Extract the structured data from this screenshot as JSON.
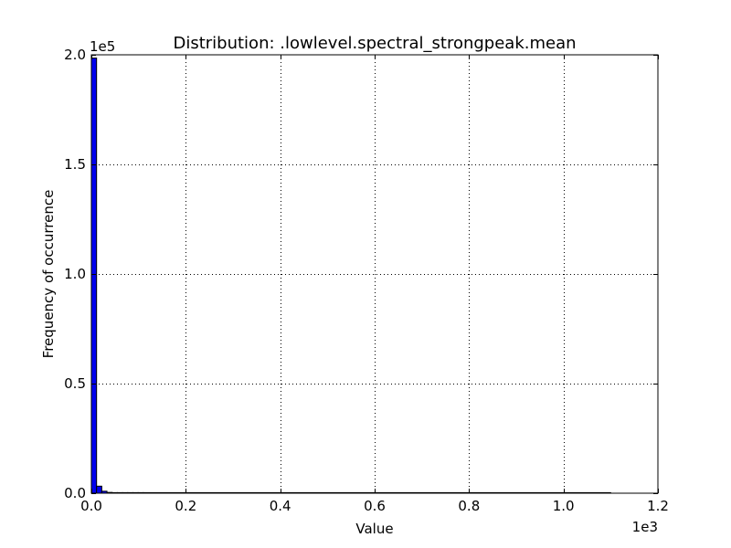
{
  "chart_data": {
    "type": "bar",
    "title": "Distribution: .lowlevel.spectral_strongpeak.mean",
    "xlabel": "Value",
    "ylabel": "Frequency of occurrence",
    "x_multiplier": "1e3",
    "y_multiplier": "1e5",
    "xlim": [
      0,
      1200
    ],
    "ylim": [
      0,
      200000
    ],
    "x_ticks": [
      0,
      200,
      400,
      600,
      800,
      1000,
      1200
    ],
    "x_tick_labels": [
      "0.0",
      "0.2",
      "0.4",
      "0.6",
      "0.8",
      "1.0",
      "1.2"
    ],
    "y_ticks": [
      0,
      50000,
      100000,
      150000,
      200000
    ],
    "y_tick_labels": [
      "0.0",
      "0.5",
      "1.0",
      "1.5",
      "2.0"
    ],
    "grid": true,
    "bar_color": "#0000ee",
    "bin_edges": [
      0,
      11,
      22,
      33,
      44,
      55,
      66,
      77,
      88,
      99,
      110,
      1100
    ],
    "values": [
      198500,
      3200,
      900,
      350,
      200,
      120,
      80,
      50,
      30,
      20,
      10
    ]
  }
}
